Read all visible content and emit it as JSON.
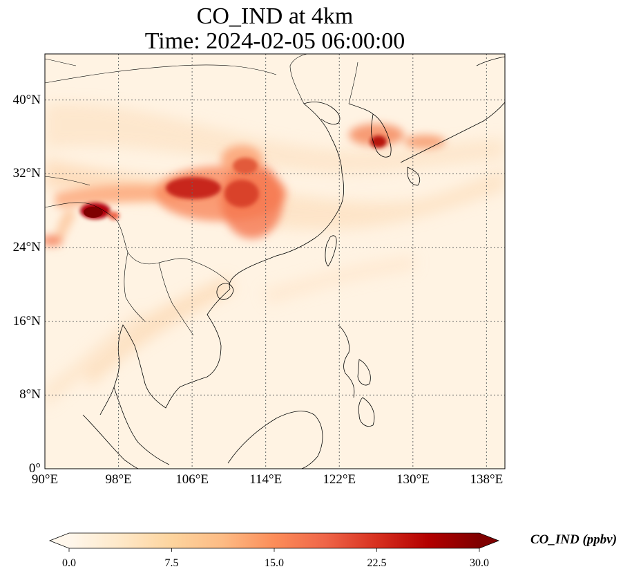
{
  "title": {
    "line1": "CO_IND at 4km",
    "line2": "Time: 2024-02-05 06:00:00"
  },
  "map": {
    "lon_range": [
      90,
      140
    ],
    "lat_range": [
      0,
      45
    ],
    "x_ticks": [
      {
        "value": 90,
        "label": "90°E"
      },
      {
        "value": 98,
        "label": "98°E"
      },
      {
        "value": 106,
        "label": "106°E"
      },
      {
        "value": 114,
        "label": "114°E"
      },
      {
        "value": 122,
        "label": "122°E"
      },
      {
        "value": 130,
        "label": "130°E"
      },
      {
        "value": 138,
        "label": "138°E"
      }
    ],
    "y_ticks": [
      {
        "value": 0,
        "label": "0°"
      },
      {
        "value": 8,
        "label": "8°N"
      },
      {
        "value": 16,
        "label": "16°N"
      },
      {
        "value": 24,
        "label": "24°N"
      },
      {
        "value": 32,
        "label": "32°N"
      },
      {
        "value": 40,
        "label": "40°N"
      }
    ],
    "gridlines": true,
    "colormap": "OrRd",
    "background_color": "#fff3e3",
    "coast_color": "#000000"
  },
  "colorbar": {
    "label": "CO_IND (ppbv)",
    "min": 0.0,
    "max": 30.0,
    "extend": "both",
    "ticks": [
      {
        "value": 0.0,
        "label": "0.0"
      },
      {
        "value": 7.5,
        "label": "7.5"
      },
      {
        "value": 15.0,
        "label": "15.0"
      },
      {
        "value": 22.5,
        "label": "22.5"
      },
      {
        "value": 30.0,
        "label": "30.0"
      }
    ],
    "stops": [
      "#fff7ec",
      "#fee8c8",
      "#fdd49e",
      "#fdbb84",
      "#fc8d59",
      "#ef6548",
      "#d7301f",
      "#b30000",
      "#7f0000"
    ]
  }
}
